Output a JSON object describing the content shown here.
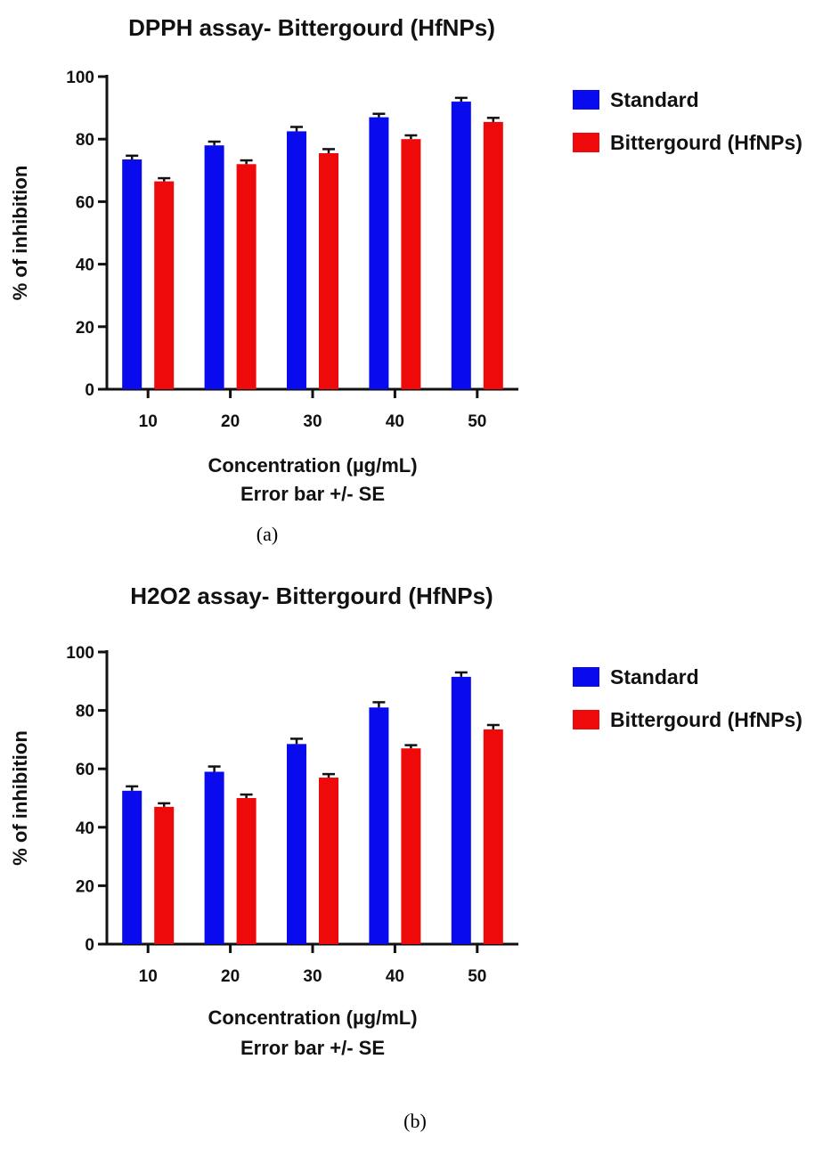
{
  "colors": {
    "standard": "#0a0aee",
    "sample": "#ee0a0a"
  },
  "chart_data": [
    {
      "type": "bar",
      "title": "DPPH assay- Bittergourd (HfNPs)",
      "xlabel": "Concentration (µg/mL)",
      "xlabel_note": "Error bar +/- SE",
      "ylabel": "% of inhibition",
      "caption": "(a)",
      "categories": [
        "10",
        "20",
        "30",
        "40",
        "50"
      ],
      "ylim": [
        0,
        100
      ],
      "yticks": [
        0,
        20,
        40,
        60,
        80,
        100
      ],
      "grid": false,
      "legend_position": "right",
      "series": [
        {
          "name": "Standard",
          "color": "#0a0aee",
          "values": [
            73.5,
            78,
            82.5,
            87,
            92
          ],
          "errors": [
            1.2,
            1.2,
            1.4,
            1.1,
            1.2
          ]
        },
        {
          "name": "Bittergourd (HfNPs)",
          "color": "#ee0a0a",
          "values": [
            66.5,
            72,
            75.5,
            80,
            85.5
          ],
          "errors": [
            1.0,
            1.2,
            1.3,
            1.2,
            1.3
          ]
        }
      ]
    },
    {
      "type": "bar",
      "title": "H2O2 assay- Bittergourd (HfNPs)",
      "xlabel": "Concentration (µg/mL)",
      "xlabel_note": "Error bar +/- SE",
      "ylabel": "% of inhibition",
      "caption": "(b)",
      "categories": [
        "10",
        "20",
        "30",
        "40",
        "50"
      ],
      "ylim": [
        0,
        100
      ],
      "yticks": [
        0,
        20,
        40,
        60,
        80,
        100
      ],
      "grid": false,
      "legend_position": "right",
      "series": [
        {
          "name": "Standard",
          "color": "#0a0aee",
          "values": [
            52.5,
            59,
            68.5,
            81,
            91.5
          ],
          "errors": [
            1.5,
            1.8,
            1.8,
            1.8,
            1.5
          ]
        },
        {
          "name": "Bittergourd (HfNPs)",
          "color": "#ee0a0a",
          "values": [
            47,
            50,
            57,
            67,
            73.5
          ],
          "errors": [
            1.2,
            1.2,
            1.2,
            1.1,
            1.5
          ]
        }
      ]
    }
  ]
}
